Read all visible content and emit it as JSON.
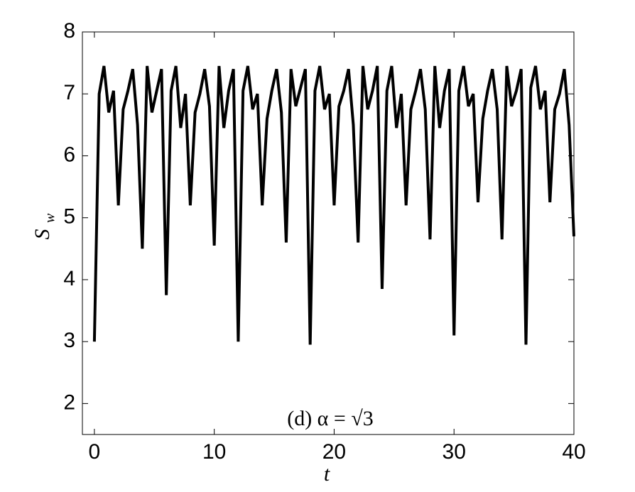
{
  "chart_data": {
    "type": "line",
    "annotation": "(d) α = √3",
    "x_label": "t",
    "y_label": "S",
    "y_label_subscript": "w",
    "xlim": [
      -1,
      40
    ],
    "ylim": [
      1.5,
      8
    ],
    "xticks": [
      0,
      10,
      20,
      30,
      40
    ],
    "yticks": [
      2,
      3,
      4,
      5,
      6,
      7,
      8
    ],
    "grid": false,
    "series": [
      {
        "color": "#000000",
        "x": [
          0,
          0.4,
          0.8,
          1.2,
          1.6,
          2,
          2.4,
          2.8,
          3.2,
          3.6,
          4,
          4.4,
          4.8,
          5.2,
          5.6,
          6,
          6.4,
          6.8,
          7.2,
          7.6,
          8,
          8.4,
          8.8,
          9.2,
          9.6,
          10,
          10.4,
          10.8,
          11.2,
          11.6,
          12,
          12.4,
          12.8,
          13.2,
          13.6,
          14,
          14.4,
          14.8,
          15.2,
          15.6,
          16,
          16.4,
          16.8,
          17.2,
          17.6,
          18,
          18.4,
          18.8,
          19.2,
          19.6,
          20,
          20.4,
          20.8,
          21.2,
          21.6,
          22,
          22.4,
          22.8,
          23.2,
          23.6,
          24,
          24.4,
          24.8,
          25.2,
          25.6,
          26,
          26.4,
          26.8,
          27.2,
          27.6,
          28,
          28.4,
          28.8,
          29.2,
          29.6,
          30,
          30.4,
          30.8,
          31.2,
          31.6,
          32,
          32.4,
          32.8,
          33.2,
          33.6,
          34,
          34.4,
          34.8,
          35.2,
          35.6,
          36,
          36.4,
          36.8,
          37.2,
          37.6,
          38,
          38.4,
          38.8,
          39.2,
          39.6,
          40
        ],
        "values": [
          3.0,
          7.0,
          7.45,
          6.7,
          7.05,
          5.2,
          6.75,
          7.05,
          7.4,
          6.5,
          4.5,
          7.45,
          6.7,
          7.05,
          7.4,
          3.75,
          7.05,
          7.45,
          6.45,
          7.0,
          5.2,
          6.7,
          7.0,
          7.4,
          6.8,
          4.55,
          7.45,
          6.45,
          7.05,
          7.4,
          3.0,
          7.05,
          7.45,
          6.75,
          7.0,
          5.2,
          6.6,
          7.05,
          7.4,
          6.7,
          4.6,
          7.4,
          6.8,
          7.1,
          7.4,
          2.95,
          7.05,
          7.45,
          6.75,
          7.0,
          5.2,
          6.8,
          7.05,
          7.4,
          6.5,
          4.6,
          7.45,
          6.75,
          7.05,
          7.45,
          3.85,
          7.05,
          7.45,
          6.45,
          7.0,
          5.2,
          6.75,
          7.05,
          7.4,
          6.75,
          4.65,
          7.45,
          6.45,
          7.05,
          7.4,
          3.1,
          7.05,
          7.45,
          6.8,
          7.0,
          5.25,
          6.6,
          7.05,
          7.4,
          6.75,
          4.65,
          7.45,
          6.8,
          7.05,
          7.4,
          2.95,
          7.1,
          7.45,
          6.75,
          7.05,
          5.25,
          6.75,
          7.0,
          7.4,
          6.5,
          4.7
        ]
      }
    ]
  }
}
